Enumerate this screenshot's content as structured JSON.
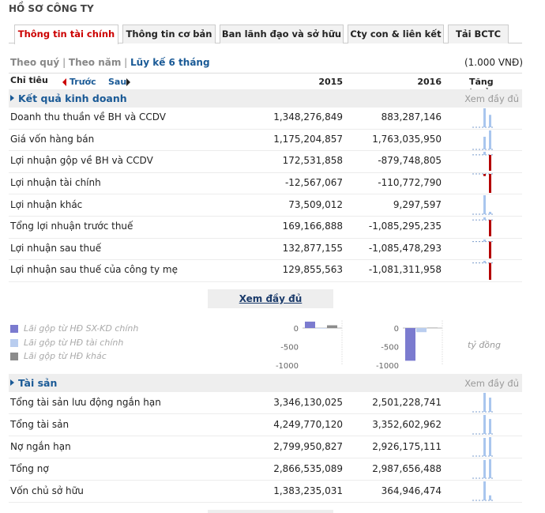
{
  "header": {
    "title": "HỒ SƠ CÔNG TY"
  },
  "tabs": [
    "Thông tin tài chính",
    "Thông tin cơ bản",
    "Ban lãnh đạo và sở hữu",
    "Cty con & liên kết",
    "Tải BCTC"
  ],
  "period_links": [
    "Theo quý",
    "Theo năm",
    "Lũy kế 6 tháng"
  ],
  "unit": "(1.000 VNĐ)",
  "table_header": {
    "label": "Chỉ tiêu",
    "prev": "Trước",
    "next": "Sau",
    "years": [
      "2015",
      "2016"
    ],
    "growth": "Tăng trưởng"
  },
  "sections": [
    {
      "title": "Kết quả kinh doanh",
      "more": "Xem đầy đủ",
      "rows": [
        {
          "label": "Doanh thu thuần về BH và CCDV",
          "values": [
            "1,348,276,849",
            "883,287,146"
          ]
        },
        {
          "label": "Giá vốn hàng bán",
          "values": [
            "1,175,204,857",
            "1,763,035,950"
          ]
        },
        {
          "label": "Lợi nhuận gộp về BH và CCDV",
          "values": [
            "172,531,858",
            "-879,748,805"
          ]
        },
        {
          "label": "Lợi nhuận tài chính",
          "values": [
            "-12,567,067",
            "-110,772,790"
          ]
        },
        {
          "label": "Lợi nhuận khác",
          "values": [
            "73,509,012",
            "9,297,597"
          ]
        },
        {
          "label": "Tổng lợi nhuận trước thuế",
          "values": [
            "169,166,888",
            "-1,085,295,235"
          ]
        },
        {
          "label": "Lợi nhuận sau thuế",
          "values": [
            "132,877,155",
            "-1,085,478,293"
          ]
        },
        {
          "label": "Lợi nhuận sau thuế của công ty mẹ",
          "values": [
            "129,855,563",
            "-1,081,311,958"
          ]
        }
      ]
    },
    {
      "title": "Tài sản",
      "more": "Xem đầy đủ",
      "rows": [
        {
          "label": "Tổng tài sản lưu động ngắn hạn",
          "values": [
            "3,346,130,025",
            "2,501,228,741"
          ]
        },
        {
          "label": "Tổng tài sản",
          "values": [
            "4,249,770,120",
            "3,352,602,962"
          ]
        },
        {
          "label": "Nợ ngắn hạn",
          "values": [
            "2,799,950,827",
            "2,926,175,111"
          ]
        },
        {
          "label": "Tổng nợ",
          "values": [
            "2,866,535,089",
            "2,987,656,488"
          ]
        },
        {
          "label": "Vốn chủ sở hữu",
          "values": [
            "1,383,235,031",
            "364,946,474"
          ]
        }
      ]
    }
  ],
  "more_button": "Xem đầy đủ",
  "mini_chart": {
    "type": "bar",
    "unit": "tỷ đồng",
    "ylim": [
      -1000,
      200
    ],
    "yticks": [
      0,
      -500,
      -1000
    ],
    "series": [
      {
        "name": "Lãi gộp từ HĐ SX-KD chính",
        "color": "#7b7bcf",
        "values": [
          173,
          -880
        ]
      },
      {
        "name": "Lãi gộp từ HĐ tài chính",
        "color": "#b9cdef",
        "values": [
          -13,
          -111
        ]
      },
      {
        "name": "Lãi gộp từ HĐ khác",
        "color": "#8c8c8c",
        "values": [
          74,
          9
        ]
      }
    ]
  }
}
